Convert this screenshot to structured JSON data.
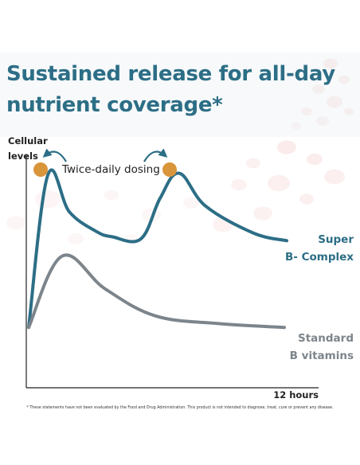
{
  "title": {
    "line1": "Sustained release for all-day",
    "line2": "nutrient coverage*"
  },
  "annotation": "Twice-daily dosing",
  "footnote": "* These statements have not been evaluated by the Food and Drug Administration. This product is not intended to diagnose, treat, cure or prevent any disease.",
  "colors": {
    "super": "#2c6e86",
    "standard": "#7d858c",
    "dose_marker": "#d9953a",
    "background_cells": "#f2b8b8"
  },
  "chart_data": {
    "type": "line",
    "ylabel_lines": [
      "Cellular",
      "levels"
    ],
    "xlabel_end": "12 hours",
    "xlim": [
      0,
      12
    ],
    "ylim": [
      0,
      100
    ],
    "grid": false,
    "dose_times": [
      0.6,
      6.0
    ],
    "series": [
      {
        "label_lines": [
          "Super",
          "B- Complex"
        ],
        "color": "#2c6e86",
        "points": [
          [
            0.1,
            21
          ],
          [
            0.9,
            100
          ],
          [
            1.8,
            81
          ],
          [
            2.9,
            71
          ],
          [
            3.6,
            68
          ],
          [
            4.8,
            67
          ],
          [
            5.6,
            88
          ],
          [
            6.4,
            101
          ],
          [
            7.5,
            84
          ],
          [
            9.5,
            70
          ],
          [
            10.9,
            66
          ]
        ]
      },
      {
        "label_lines": [
          "Standard",
          "B vitamins"
        ],
        "color": "#7d858c",
        "points": [
          [
            0.1,
            21
          ],
          [
            1.5,
            58
          ],
          [
            3.3,
            41
          ],
          [
            5.4,
            27
          ],
          [
            8.0,
            23
          ],
          [
            10.8,
            21
          ]
        ]
      }
    ]
  }
}
